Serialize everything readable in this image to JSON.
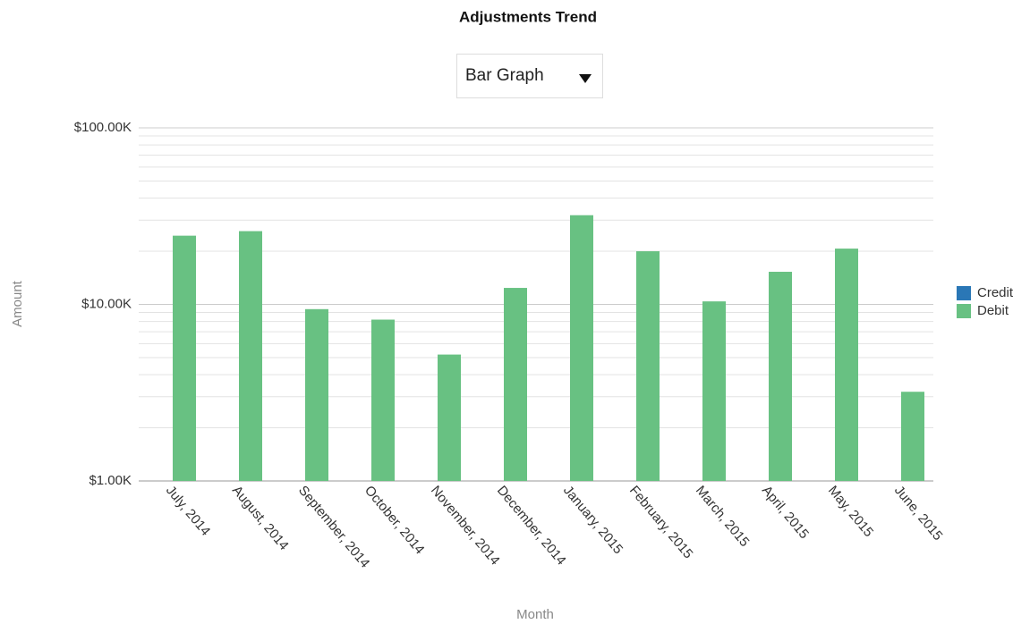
{
  "chart_data": {
    "type": "bar",
    "title": "Adjustments Trend",
    "view_selector": "Bar Graph",
    "x_label": "Month",
    "y_label": "Amount",
    "categories": [
      "July, 2014",
      "August, 2014",
      "September, 2014",
      "October, 2014",
      "November, 2014",
      "December, 2014",
      "January, 2015",
      "February, 2015",
      "March, 2015",
      "April, 2015",
      "May, 2015",
      "June, 2015"
    ],
    "series": [
      {
        "name": "Credit",
        "color": "#2a77b6",
        "values": [
          null,
          null,
          null,
          null,
          null,
          null,
          null,
          null,
          null,
          null,
          null,
          null
        ]
      },
      {
        "name": "Debit",
        "color": "#68c182",
        "values": [
          24500,
          26000,
          9400,
          8200,
          5200,
          12400,
          32000,
          20000,
          10400,
          15300,
          20700,
          3200
        ]
      }
    ],
    "log_scale": true,
    "ylim": [
      1000,
      100000
    ],
    "yticks": [
      {
        "value": 1000,
        "label": "$1.00K"
      },
      {
        "value": 10000,
        "label": "$10.00K"
      },
      {
        "value": 100000,
        "label": "$100.00K"
      }
    ],
    "minor_yticks": [
      2000,
      3000,
      4000,
      5000,
      6000,
      7000,
      8000,
      9000,
      20000,
      30000,
      40000,
      50000,
      60000,
      70000,
      80000,
      90000
    ],
    "grid": true,
    "legend": "right"
  }
}
